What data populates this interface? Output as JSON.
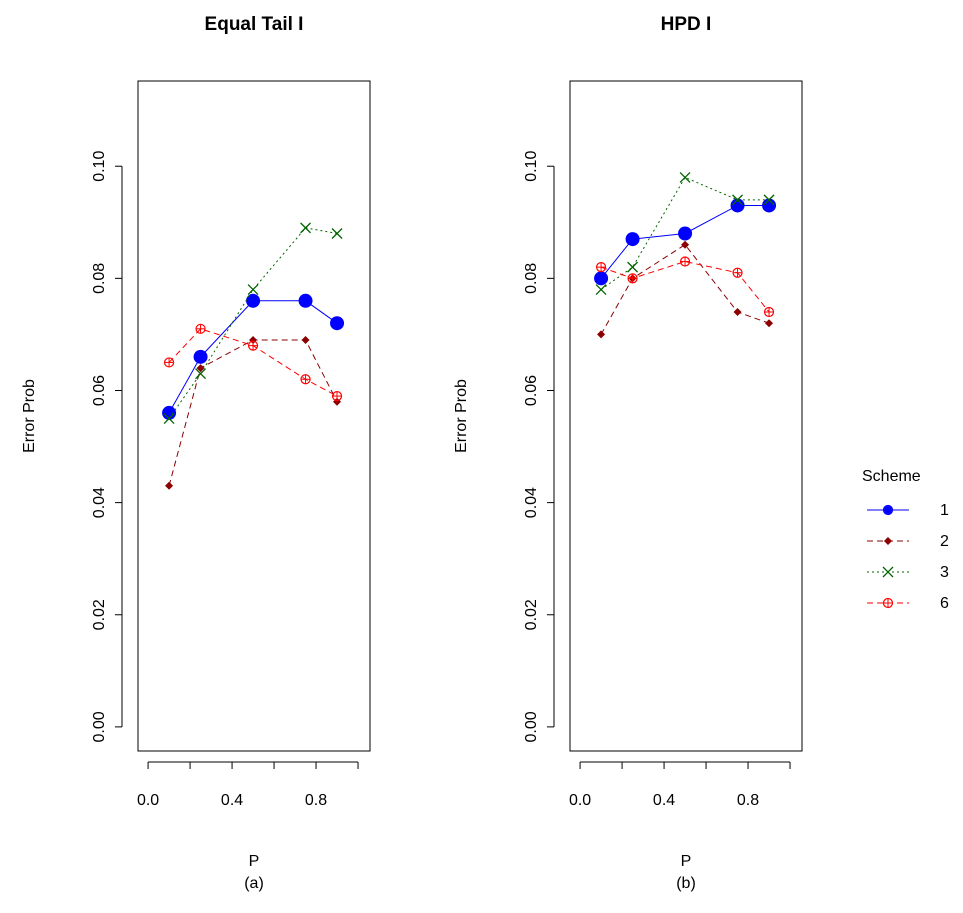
{
  "chart_data": [
    {
      "type": "line",
      "title": "Equal Tail I",
      "xlabel": "P",
      "subtitle": "(a)",
      "ylabel": "Error Prob",
      "x": [
        0.1,
        0.25,
        0.5,
        0.75,
        0.9
      ],
      "xlim": [
        -0.048,
        1.057
      ],
      "ylim": [
        -0.0043,
        0.1152
      ],
      "xticks": [
        {
          "value": 0,
          "label": "0.0"
        },
        0.4,
        0.8
      ],
      "xticks_minor": [
        0.2,
        0.6,
        1
      ],
      "yticks": [
        {
          "value": 0,
          "label": "0.00"
        },
        0.02,
        0.04,
        0.06,
        0.08,
        {
          "value": 0.1,
          "label": "0.10"
        }
      ],
      "series": [
        {
          "name": "1",
          "color": "#0000ff",
          "line_style": "solid",
          "marker": "big-dot",
          "values": [
            0.056,
            0.066,
            0.076,
            0.076,
            0.072
          ]
        },
        {
          "name": "2",
          "color": "#8b0000",
          "line_style": "dashed",
          "marker": "diamond",
          "values": [
            0.043,
            0.064,
            0.069,
            0.069,
            0.058
          ]
        },
        {
          "name": "3",
          "color": "#006400",
          "line_style": "dotted",
          "marker": "cross",
          "values": [
            0.055,
            0.063,
            0.078,
            0.089,
            0.088
          ]
        },
        {
          "name": "6",
          "color": "#ff0000",
          "line_style": "dashed",
          "marker": "circle-plus",
          "values": [
            0.065,
            0.071,
            0.068,
            0.062,
            0.059
          ]
        }
      ]
    },
    {
      "type": "line",
      "title": "HPD I",
      "xlabel": "P",
      "subtitle": "(b)",
      "ylabel": "Error Prob",
      "legend_title": "Scheme",
      "x": [
        0.1,
        0.25,
        0.5,
        0.75,
        0.9
      ],
      "xlim": [
        -0.048,
        1.057
      ],
      "ylim": [
        -0.0043,
        0.1152
      ],
      "xticks": [
        {
          "value": 0,
          "label": "0.0"
        },
        0.4,
        0.8
      ],
      "xticks_minor": [
        0.2,
        0.6,
        1
      ],
      "yticks": [
        {
          "value": 0,
          "label": "0.00"
        },
        0.02,
        0.04,
        0.06,
        0.08,
        {
          "value": 0.1,
          "label": "0.10"
        }
      ],
      "series": [
        {
          "name": "1",
          "color": "#0000ff",
          "line_style": "solid",
          "marker": "big-dot",
          "values": [
            0.08,
            0.087,
            0.088,
            0.093,
            0.093
          ]
        },
        {
          "name": "2",
          "color": "#8b0000",
          "line_style": "dashed",
          "marker": "diamond",
          "values": [
            0.07,
            0.08,
            0.086,
            0.074,
            0.072
          ]
        },
        {
          "name": "3",
          "color": "#006400",
          "line_style": "dotted",
          "marker": "cross",
          "values": [
            0.078,
            0.082,
            0.098,
            0.094,
            0.094
          ]
        },
        {
          "name": "6",
          "color": "#ff0000",
          "line_style": "dashed",
          "marker": "circle-plus",
          "values": [
            0.082,
            0.08,
            0.083,
            0.081,
            0.074
          ]
        }
      ]
    }
  ]
}
